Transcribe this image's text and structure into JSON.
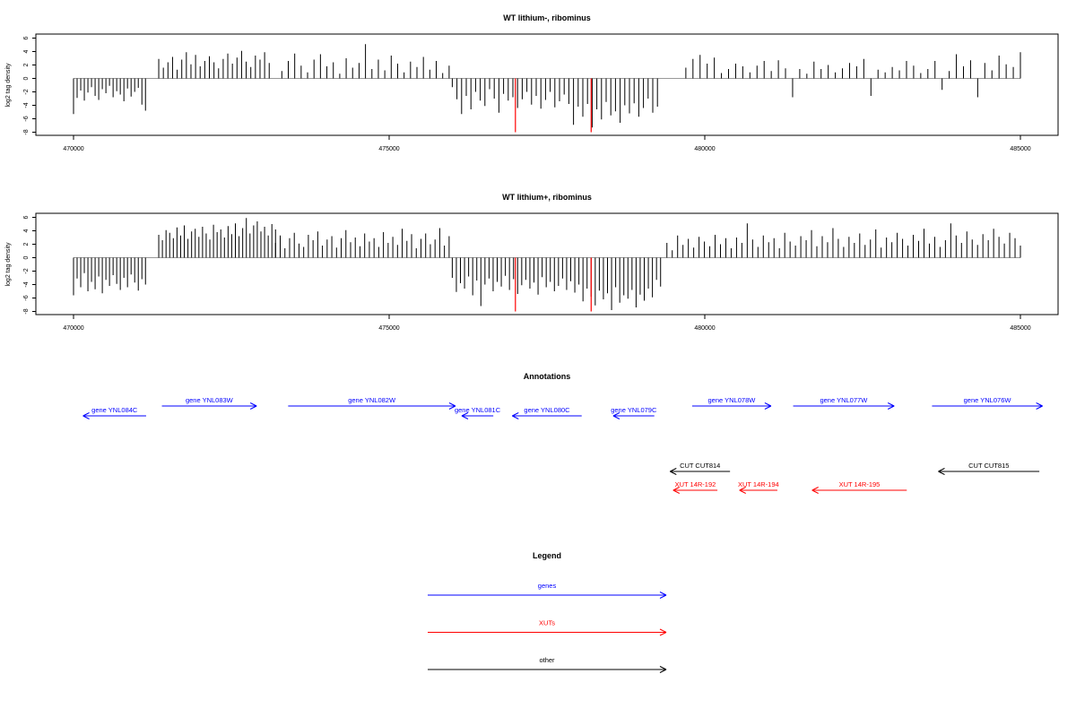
{
  "chart_data": [
    {
      "type": "bar",
      "title": "WT lithium-, ribominus",
      "ylabel": "log2 tag density",
      "xlabel": "",
      "xlim": [
        470000,
        485000
      ],
      "ylim": [
        -8,
        6
      ],
      "xticks": [
        "470000",
        "475000",
        "480000",
        "485000"
      ],
      "yticks": [
        "6",
        "4",
        "2",
        "0",
        "-2",
        "-4",
        "-6",
        "-8"
      ],
      "grid": false,
      "series": [
        {
          "color": "#000000",
          "segments": [
            {
              "from": 470000,
              "to": 471140,
              "values": [
                -5.3,
                -2.9,
                -1.8,
                -3.3,
                -2.1,
                -1.3,
                -2.6,
                -3.2,
                -1.6,
                -2.2,
                -1.1,
                -2.8,
                -1.9,
                -2.4,
                -3.4,
                -1.5,
                -2.7,
                -2.0,
                -1.4,
                -3.9,
                -4.8
              ]
            },
            {
              "from": 471350,
              "to": 473100,
              "values": [
                2.9,
                1.6,
                2.4,
                3.2,
                1.3,
                2.8,
                3.9,
                2.1,
                3.5,
                1.8,
                2.6,
                3.3,
                2.4,
                1.5,
                2.9,
                3.7,
                2.2,
                3.1,
                4.1,
                2.5,
                1.7,
                3.4,
                2.8,
                3.9,
                2.3
              ]
            },
            {
              "from": 473300,
              "to": 475950,
              "values": [
                1.1,
                2.6,
                3.7,
                1.9,
                0.9,
                2.8,
                3.6,
                1.8,
                2.4,
                0.7,
                3.0,
                1.6,
                2.3,
                5.1,
                1.4,
                2.8,
                1.2,
                3.4,
                2.2,
                0.9,
                2.5,
                1.7,
                3.2,
                1.3,
                2.6,
                0.8,
                1.9
              ]
            },
            {
              "from": 476000,
              "to": 479250,
              "values": [
                -1.3,
                -3.1,
                -5.3,
                -2.6,
                -4.6,
                -2.0,
                -3.3,
                -4.1,
                -1.6,
                -3.0,
                -5.1,
                -2.3,
                -3.3,
                -2.8,
                -4.4,
                -3.1,
                -2.0,
                -3.9,
                -2.6,
                -4.5,
                -3.2,
                -2.0,
                -4.3,
                -3.4,
                -2.4,
                -3.8,
                -6.9,
                -4.2,
                -5.7,
                -3.8,
                -7.3,
                -4.6,
                -6.1,
                -3.5,
                -5.5,
                -4.9,
                -6.6,
                -4.0,
                -5.2,
                -3.7,
                -5.7,
                -4.4,
                -3.0,
                -5.1,
                -4.2
              ]
            },
            {
              "from": 479700,
              "to": 485000,
              "values": [
                1.6,
                2.9,
                3.5,
                2.2,
                3.1,
                0.8,
                1.4,
                2.2,
                1.8,
                0.9,
                1.9,
                2.6,
                1.1,
                2.7,
                1.5,
                -2.8,
                1.4,
                0.7,
                2.5,
                1.4,
                2.0,
                0.9,
                1.5,
                2.3,
                1.8,
                2.9,
                -2.6,
                1.3,
                0.9,
                1.7,
                1.2,
                2.6,
                1.9,
                0.8,
                1.4,
                2.6,
                -1.7,
                1.1,
                3.6,
                1.8,
                2.7,
                -2.8,
                2.3,
                1.2,
                3.4,
                2.1,
                1.7,
                3.9
              ]
            }
          ]
        },
        {
          "color": "#ff0000",
          "points": [
            [
              477000,
              -8
            ],
            [
              478200,
              -8
            ]
          ]
        }
      ]
    },
    {
      "type": "bar",
      "title": "WT lithium+, ribominus",
      "ylabel": "log2 tag density",
      "xlabel": "",
      "xlim": [
        470000,
        485000
      ],
      "ylim": [
        -8,
        6
      ],
      "xticks": [
        "470000",
        "475000",
        "480000",
        "485000"
      ],
      "yticks": [
        "6",
        "4",
        "2",
        "0",
        "-2",
        "-4",
        "-6",
        "-8"
      ],
      "grid": false,
      "series": [
        {
          "color": "#000000",
          "segments": [
            {
              "from": 470000,
              "to": 471140,
              "values": [
                -5.6,
                -3.1,
                -4.4,
                -2.3,
                -5.0,
                -3.6,
                -4.7,
                -2.8,
                -5.3,
                -3.3,
                -4.2,
                -2.6,
                -3.9,
                -4.8,
                -3.0,
                -4.4,
                -2.5,
                -3.7,
                -4.9,
                -3.2,
                -4.0
              ]
            },
            {
              "from": 471350,
              "to": 473200,
              "values": [
                3.4,
                2.6,
                4.1,
                3.7,
                2.9,
                4.5,
                3.3,
                4.8,
                2.8,
                3.9,
                4.3,
                3.1,
                4.6,
                3.6,
                2.7,
                4.9,
                3.8,
                4.2,
                3.0,
                4.7,
                3.5,
                5.1,
                3.2,
                4.4,
                5.9,
                3.6,
                4.8,
                5.4,
                3.9,
                4.6,
                3.3,
                5.0,
                4.2
              ]
            },
            {
              "from": 473200,
              "to": 475950,
              "values": [
                2.2,
                3.3,
                1.4,
                2.9,
                3.7,
                2.1,
                1.6,
                3.4,
                2.6,
                3.9,
                1.8,
                2.7,
                3.2,
                1.5,
                2.9,
                4.1,
                2.3,
                3.0,
                1.7,
                3.6,
                2.4,
                2.9,
                1.6,
                3.8,
                2.2,
                3.1,
                1.9,
                4.3,
                2.5,
                3.5,
                1.4,
                2.8,
                3.6,
                2.0,
                2.7,
                4.4,
                1.8,
                3.2
              ]
            },
            {
              "from": 476000,
              "to": 479300,
              "values": [
                -3.0,
                -5.1,
                -3.8,
                -4.6,
                -2.8,
                -5.6,
                -3.4,
                -7.2,
                -4.0,
                -3.1,
                -5.0,
                -3.6,
                -4.3,
                -2.7,
                -4.8,
                -3.2,
                -5.4,
                -4.1,
                -3.3,
                -4.6,
                -3.7,
                -5.5,
                -2.9,
                -4.4,
                -3.6,
                -5.0,
                -4.2,
                -3.1,
                -4.8,
                -3.5,
                -5.2,
                -4.0,
                -6.5,
                -4.6,
                -5.8,
                -7.1,
                -4.9,
                -6.2,
                -5.3,
                -7.8,
                -4.4,
                -6.7,
                -5.6,
                -6.1,
                -4.8,
                -7.4,
                -5.5,
                -6.4,
                -4.6,
                -5.9,
                -3.3,
                -4.3
              ]
            },
            {
              "from": 479400,
              "to": 485000,
              "values": [
                2.2,
                1.1,
                3.3,
                1.9,
                2.8,
                1.5,
                3.1,
                2.4,
                1.7,
                3.4,
                2.0,
                2.9,
                1.4,
                3.0,
                2.2,
                5.1,
                2.7,
                1.6,
                3.3,
                2.3,
                2.9,
                1.4,
                3.7,
                2.4,
                1.8,
                3.2,
                2.6,
                4.1,
                1.7,
                3.2,
                2.3,
                4.4,
                2.8,
                1.6,
                3.1,
                2.2,
                3.6,
                1.9,
                2.7,
                4.2,
                1.5,
                3.0,
                2.3,
                3.7,
                2.8,
                1.8,
                3.4,
                2.5,
                4.3,
                2.1,
                3.1,
                1.6,
                2.6,
                5.1,
                3.3,
                2.2,
                3.9,
                2.7,
                1.9,
                3.5,
                2.6,
                4.3,
                3.1,
                2.1,
                3.7,
                2.9,
                1.8
              ]
            }
          ]
        },
        {
          "color": "#ff0000",
          "points": [
            [
              477000,
              -8
            ],
            [
              478200,
              -8
            ]
          ]
        }
      ]
    }
  ],
  "annotations": {
    "title": "Annotations",
    "genes_color": "#0000ff",
    "xuts_color": "#ff0000",
    "other_color": "#000000",
    "genes": [
      {
        "label": "gene YNL084C",
        "dir": "left",
        "x1": 470150,
        "x2": 471150,
        "row": 2
      },
      {
        "label": "gene YNL083W",
        "dir": "right",
        "x1": 471400,
        "x2": 472900,
        "row": 1
      },
      {
        "label": "gene YNL082W",
        "dir": "right",
        "x1": 473400,
        "x2": 476050,
        "row": 1
      },
      {
        "label": "gene YNL081C",
        "dir": "left",
        "x1": 476150,
        "x2": 476650,
        "row": 2
      },
      {
        "label": "gene YNL080C",
        "dir": "left",
        "x1": 476950,
        "x2": 478050,
        "row": 2
      },
      {
        "label": "gene YNL079C",
        "dir": "left",
        "x1": 478550,
        "x2": 479200,
        "row": 2
      },
      {
        "label": "gene YNL078W",
        "dir": "right",
        "x1": 479800,
        "x2": 481050,
        "row": 1
      },
      {
        "label": "gene YNL077W",
        "dir": "right",
        "x1": 481400,
        "x2": 483000,
        "row": 1
      },
      {
        "label": "gene YNL076W",
        "dir": "right",
        "x1": 483600,
        "x2": 485350,
        "row": 1
      }
    ],
    "xuts": [
      {
        "label": "XUT 14R-192",
        "dir": "left",
        "x1": 479500,
        "x2": 480200,
        "row": 5
      },
      {
        "label": "XUT 14R-194",
        "dir": "left",
        "x1": 480550,
        "x2": 481150,
        "row": 5
      },
      {
        "label": "XUT 14R-195",
        "dir": "left",
        "x1": 481700,
        "x2": 483200,
        "row": 5
      }
    ],
    "other": [
      {
        "label": "CUT CUT814",
        "dir": "left",
        "x1": 479450,
        "x2": 480400,
        "row": 4
      },
      {
        "label": "CUT CUT815",
        "dir": "left",
        "x1": 483700,
        "x2": 485300,
        "row": 4
      }
    ]
  },
  "legend": {
    "title": "Legend",
    "items": [
      {
        "label": "genes",
        "color": "#0000ff"
      },
      {
        "label": "XUTs",
        "color": "#ff0000"
      },
      {
        "label": "other",
        "color": "#000000"
      }
    ]
  }
}
